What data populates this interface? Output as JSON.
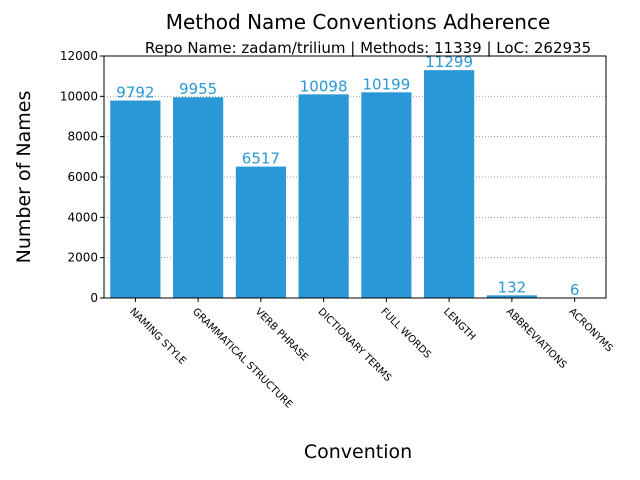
{
  "chart_data": {
    "type": "bar",
    "title": "Method Name Conventions Adherence",
    "subtitle": "Repo Name: zadam/trilium | Methods: 11339 | LoC: 262935",
    "xlabel": "Convention",
    "ylabel": "Number of Names",
    "categories": [
      "NAMING STYLE",
      "GRAMMATICAL STRUCTURE",
      "VERB PHRASE",
      "DICTIONARY TERMS",
      "FULL WORDS",
      "LENGTH",
      "ABBREVIATIONS",
      "ACRONYMS"
    ],
    "values": [
      9792,
      9955,
      6517,
      10098,
      10199,
      11299,
      132,
      6
    ],
    "ylim": [
      0,
      12000
    ],
    "yticks": [
      0,
      2000,
      4000,
      6000,
      8000,
      10000,
      12000
    ],
    "grid": "horizontal dotted",
    "bar_color": "#2a98d6",
    "label_color": "#2a98d6"
  }
}
